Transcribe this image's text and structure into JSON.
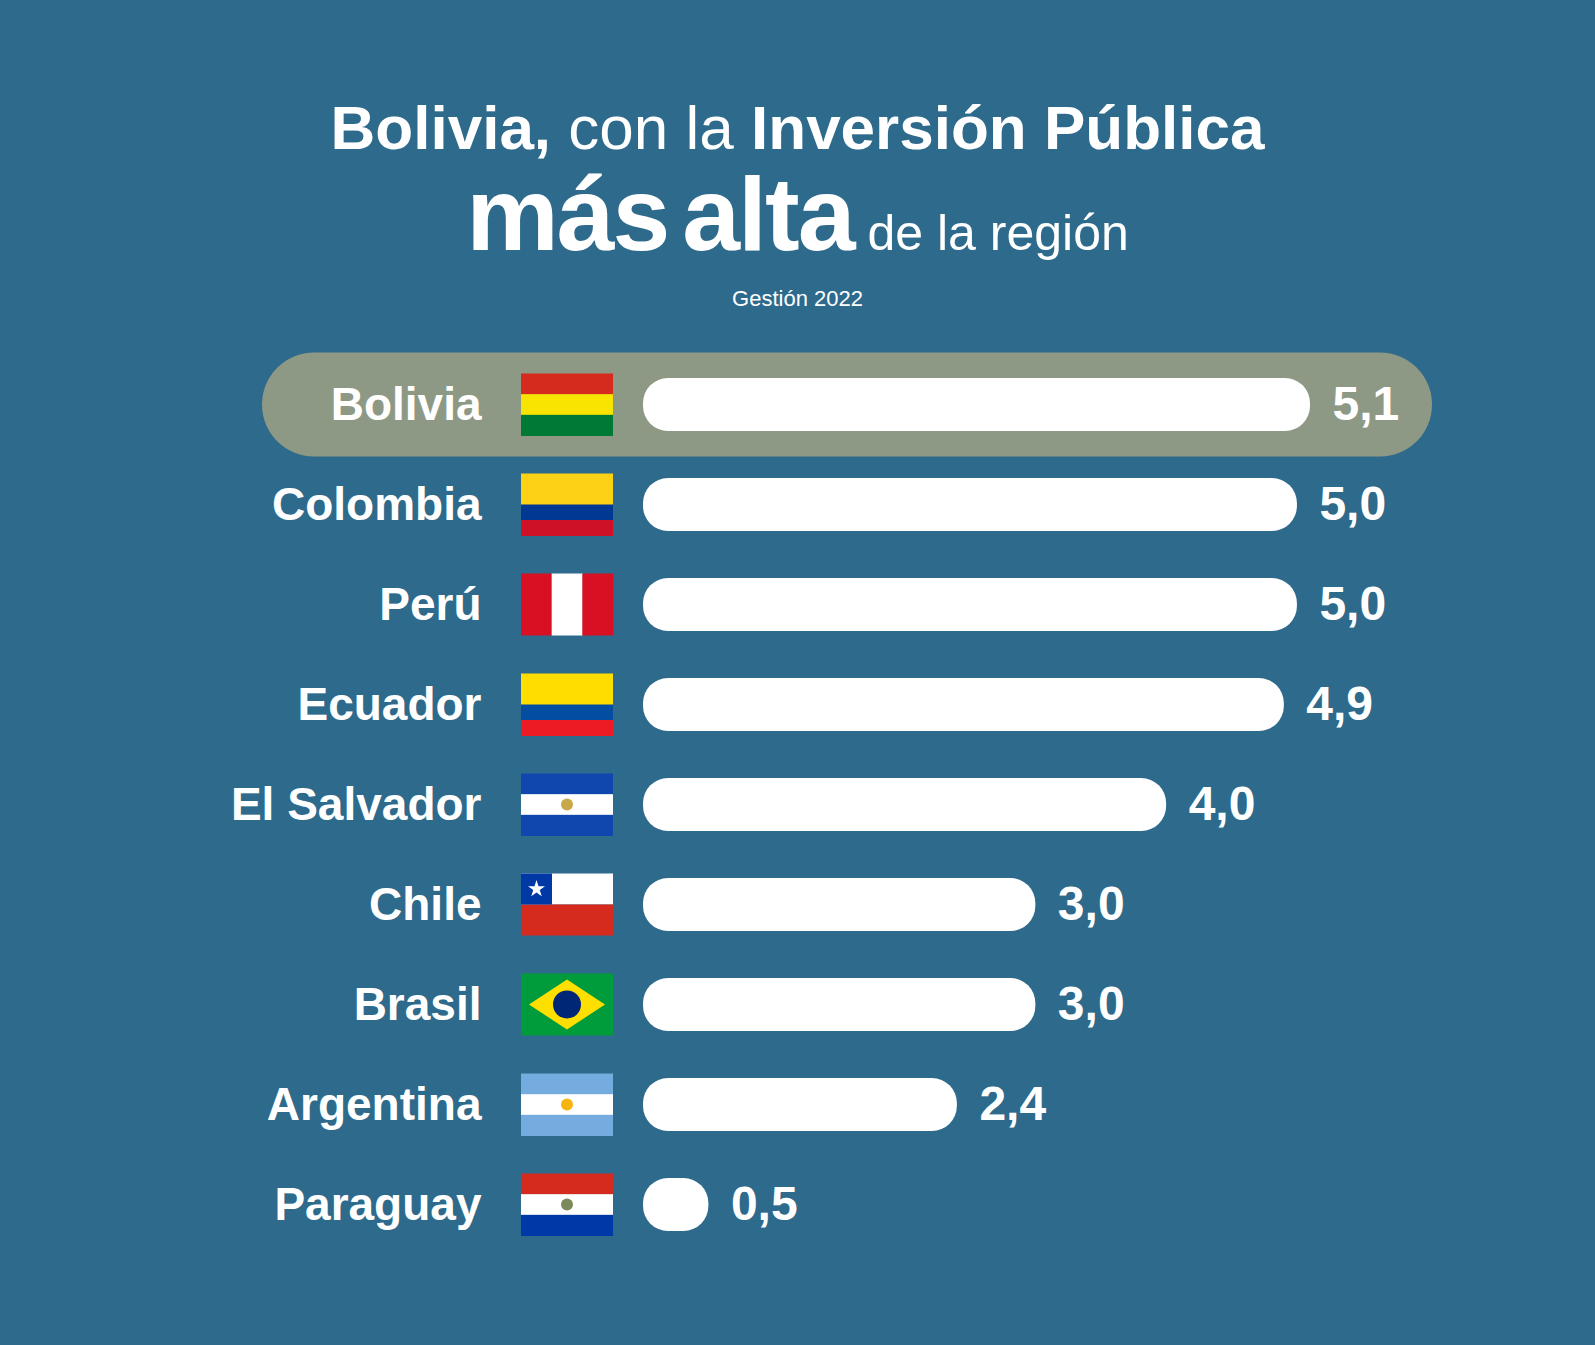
{
  "chart_data": {
    "type": "bar",
    "title": "Bolivia, con la Inversión Pública más alta de la región",
    "subtitle": "Gestión 2022",
    "orientation": "horizontal",
    "categories": [
      "Bolivia",
      "Colombia",
      "Perú",
      "Ecuador",
      "El Salvador",
      "Chile",
      "Brasil",
      "Argentina",
      "Paraguay"
    ],
    "values": [
      5.1,
      5.0,
      5.0,
      4.9,
      4.0,
      3.0,
      3.0,
      2.4,
      0.5
    ],
    "value_labels": [
      "5,1",
      "5,0",
      "5,0",
      "4,9",
      "4,0",
      "3,0",
      "3,0",
      "2,4",
      "0,5"
    ],
    "color": "#ffffff",
    "xlim": [
      0,
      5.1
    ],
    "data_labels": true,
    "tick_labels": "y"
  }
}
